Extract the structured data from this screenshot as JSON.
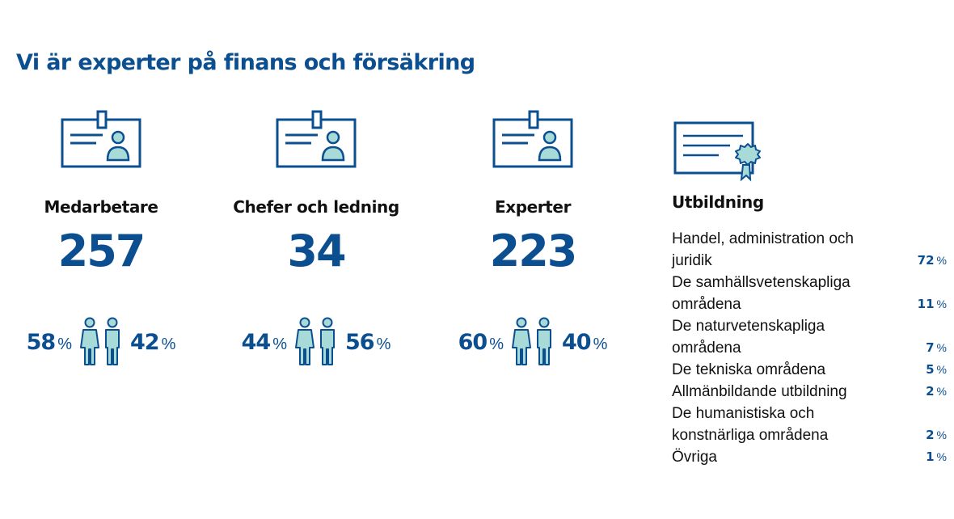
{
  "title": "Vi är experter på finans och försäkring",
  "colors": {
    "accent": "#0b4f91",
    "icon_fill": "#a8dad8"
  },
  "stats": [
    {
      "icon": "id-badge-icon",
      "label": "Medarbetare",
      "value": "257",
      "women_pct": "58",
      "men_pct": "42"
    },
    {
      "icon": "id-badge-icon",
      "label": "Chefer och ledning",
      "value": "34",
      "women_pct": "44",
      "men_pct": "56"
    },
    {
      "icon": "id-badge-icon",
      "label": "Experter",
      "value": "223",
      "women_pct": "60",
      "men_pct": "40"
    }
  ],
  "percent_symbol": "%",
  "education": {
    "icon": "diploma-icon",
    "heading": "Utbildning",
    "rows": [
      {
        "name": "Handel, administration och juridik",
        "value": "72"
      },
      {
        "name": "De samhällsvetenskapliga områdena",
        "value": "11"
      },
      {
        "name": "De naturvetenskapliga områdena",
        "value": "7"
      },
      {
        "name": "De tekniska områdena",
        "value": "5"
      },
      {
        "name": "Allmänbildande utbildning",
        "value": "2"
      },
      {
        "name": "De humanistiska och konstnärliga områdena",
        "value": "2"
      },
      {
        "name": "Övriga",
        "value": "1"
      }
    ]
  }
}
